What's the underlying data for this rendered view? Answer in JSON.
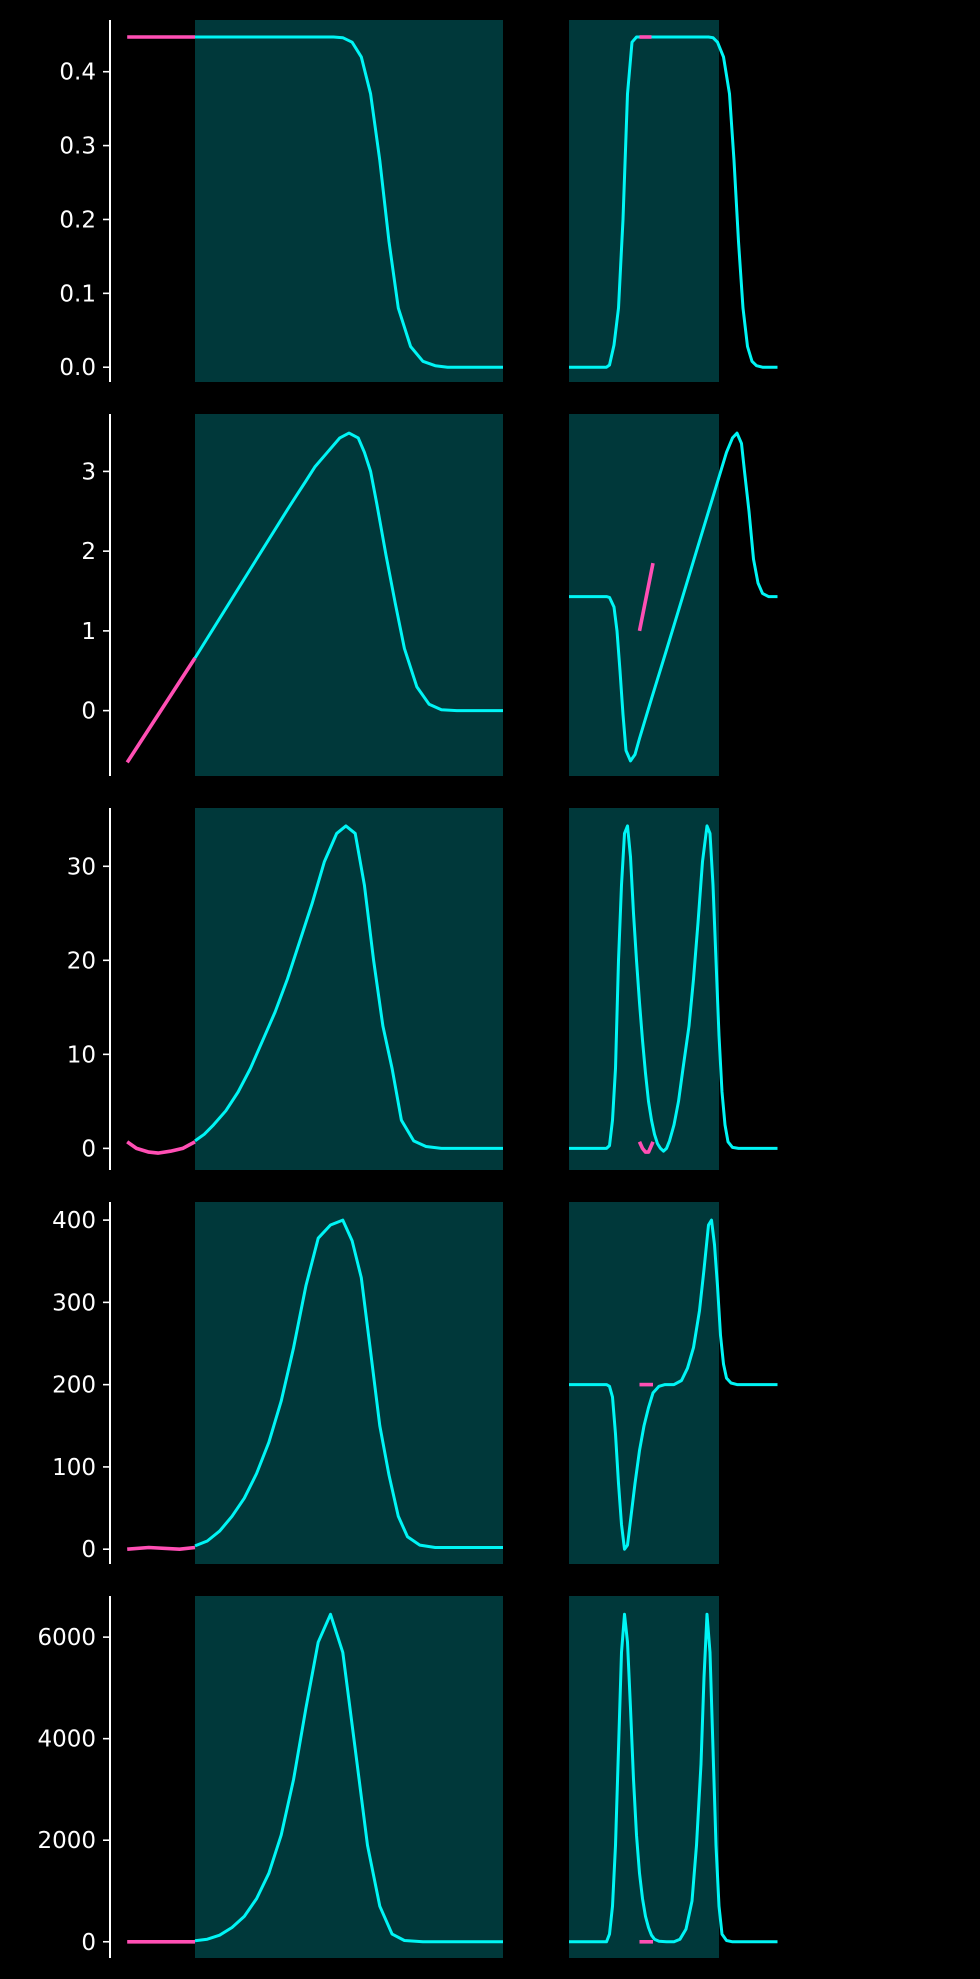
{
  "figure": {
    "background": "#000000"
  },
  "colors": {
    "line": "#00f5f5",
    "segment": "#ff4fb4",
    "shade": "#00383a",
    "axis": "#ffffff"
  },
  "chart_data": [
    {
      "type": "line",
      "ylim": [
        -0.02,
        0.47
      ],
      "yticks": [
        0.0,
        0.1,
        0.2,
        0.3,
        0.4
      ],
      "ytick_labels": [
        "0.0",
        "0.1",
        "0.2",
        "0.3",
        "0.4"
      ],
      "left_series": [
        [
          0.0,
          0.447
        ],
        [
          0.22,
          0.447
        ],
        [
          0.26,
          0.447
        ],
        [
          0.3,
          0.447
        ],
        [
          0.35,
          0.447
        ],
        [
          0.4,
          0.447
        ],
        [
          0.45,
          0.447
        ],
        [
          0.48,
          0.446
        ],
        [
          0.51,
          0.44
        ],
        [
          0.54,
          0.42
        ],
        [
          0.57,
          0.37
        ],
        [
          0.6,
          0.28
        ],
        [
          0.63,
          0.17
        ],
        [
          0.66,
          0.08
        ],
        [
          0.7,
          0.028
        ],
        [
          0.74,
          0.008
        ],
        [
          0.78,
          0.002
        ],
        [
          0.82,
          0.0
        ],
        [
          0.9,
          0.0
        ],
        [
          1.0,
          0.0
        ]
      ],
      "left_segment": [
        [
          -0.22,
          0.447
        ],
        [
          0.0,
          0.447
        ]
      ],
      "right_series": [
        [
          0.0,
          0.0
        ],
        [
          0.25,
          0.0
        ],
        [
          0.27,
          0.003
        ],
        [
          0.3,
          0.03
        ],
        [
          0.33,
          0.08
        ],
        [
          0.36,
          0.2
        ],
        [
          0.39,
          0.37
        ],
        [
          0.42,
          0.44
        ],
        [
          0.45,
          0.447
        ],
        [
          0.55,
          0.447
        ],
        [
          0.7,
          0.447
        ],
        [
          0.93,
          0.447
        ],
        [
          0.96,
          0.446
        ],
        [
          0.99,
          0.44
        ],
        [
          1.03,
          0.42
        ],
        [
          1.07,
          0.37
        ],
        [
          1.1,
          0.28
        ],
        [
          1.13,
          0.17
        ],
        [
          1.16,
          0.08
        ],
        [
          1.19,
          0.028
        ],
        [
          1.22,
          0.008
        ],
        [
          1.25,
          0.002
        ],
        [
          1.29,
          0.0
        ],
        [
          1.39,
          0.0
        ]
      ],
      "right_segment": [
        [
          0.47,
          0.447
        ],
        [
          0.55,
          0.447
        ]
      ]
    },
    {
      "type": "line",
      "ylim": [
        -0.82,
        3.72
      ],
      "yticks": [
        0,
        1,
        2,
        3
      ],
      "ytick_labels": [
        "0",
        "1",
        "2",
        "3"
      ],
      "left_series": [
        [
          0.0,
          0.66
        ],
        [
          0.1,
          1.28
        ],
        [
          0.2,
          1.9
        ],
        [
          0.3,
          2.52
        ],
        [
          0.33,
          2.7
        ],
        [
          0.36,
          2.88
        ],
        [
          0.39,
          3.06
        ],
        [
          0.43,
          3.24
        ],
        [
          0.47,
          3.42
        ],
        [
          0.5,
          3.48
        ],
        [
          0.53,
          3.42
        ],
        [
          0.55,
          3.24
        ],
        [
          0.57,
          3.0
        ],
        [
          0.59,
          2.6
        ],
        [
          0.62,
          1.95
        ],
        [
          0.65,
          1.35
        ],
        [
          0.68,
          0.78
        ],
        [
          0.72,
          0.3
        ],
        [
          0.76,
          0.08
        ],
        [
          0.8,
          0.01
        ],
        [
          0.85,
          0.0
        ],
        [
          1.0,
          0.0
        ]
      ],
      "left_segment": [
        [
          -0.22,
          -0.65
        ],
        [
          0.0,
          0.66
        ]
      ],
      "right_series": [
        [
          0.0,
          1.43
        ],
        [
          0.25,
          1.43
        ],
        [
          0.27,
          1.42
        ],
        [
          0.3,
          1.3
        ],
        [
          0.32,
          1.0
        ],
        [
          0.34,
          0.5
        ],
        [
          0.36,
          -0.05
        ],
        [
          0.38,
          -0.5
        ],
        [
          0.41,
          -0.63
        ],
        [
          0.44,
          -0.55
        ],
        [
          0.47,
          -0.35
        ],
        [
          0.55,
          0.15
        ],
        [
          0.65,
          0.76
        ],
        [
          0.75,
          1.38
        ],
        [
          0.85,
          2.0
        ],
        [
          0.95,
          2.62
        ],
        [
          1.0,
          2.93
        ],
        [
          1.05,
          3.24
        ],
        [
          1.09,
          3.42
        ],
        [
          1.12,
          3.48
        ],
        [
          1.15,
          3.35
        ],
        [
          1.17,
          3.0
        ],
        [
          1.2,
          2.5
        ],
        [
          1.23,
          1.9
        ],
        [
          1.26,
          1.6
        ],
        [
          1.29,
          1.47
        ],
        [
          1.33,
          1.43
        ],
        [
          1.39,
          1.43
        ]
      ],
      "right_segment": [
        [
          0.47,
          1.0
        ],
        [
          0.56,
          1.85
        ]
      ]
    },
    {
      "type": "line",
      "ylim": [
        -2.3,
        36.2
      ],
      "yticks": [
        0,
        10,
        20,
        30
      ],
      "ytick_labels": [
        "0",
        "10",
        "20",
        "30"
      ],
      "left_series": [
        [
          0.0,
          0.8
        ],
        [
          0.03,
          1.5
        ],
        [
          0.06,
          2.5
        ],
        [
          0.1,
          4.0
        ],
        [
          0.14,
          6.0
        ],
        [
          0.18,
          8.5
        ],
        [
          0.22,
          11.5
        ],
        [
          0.26,
          14.5
        ],
        [
          0.3,
          18.0
        ],
        [
          0.34,
          22.0
        ],
        [
          0.38,
          26.0
        ],
        [
          0.42,
          30.5
        ],
        [
          0.46,
          33.5
        ],
        [
          0.49,
          34.3
        ],
        [
          0.52,
          33.5
        ],
        [
          0.55,
          28.0
        ],
        [
          0.58,
          20.0
        ],
        [
          0.61,
          13.0
        ],
        [
          0.64,
          8.5
        ],
        [
          0.67,
          3.0
        ],
        [
          0.71,
          0.8
        ],
        [
          0.75,
          0.2
        ],
        [
          0.8,
          0.0
        ],
        [
          0.9,
          0.0
        ],
        [
          1.0,
          0.0
        ]
      ],
      "left_segment": [
        [
          -0.22,
          0.7
        ],
        [
          -0.19,
          0.0
        ],
        [
          -0.15,
          -0.4
        ],
        [
          -0.12,
          -0.5
        ],
        [
          -0.08,
          -0.3
        ],
        [
          -0.04,
          0.0
        ],
        [
          0.0,
          0.7
        ]
      ],
      "right_series": [
        [
          0.0,
          0.0
        ],
        [
          0.25,
          0.0
        ],
        [
          0.27,
          0.3
        ],
        [
          0.29,
          3.0
        ],
        [
          0.31,
          8.5
        ],
        [
          0.33,
          20.0
        ],
        [
          0.35,
          28.0
        ],
        [
          0.37,
          33.5
        ],
        [
          0.39,
          34.3
        ],
        [
          0.41,
          31.0
        ],
        [
          0.43,
          25.0
        ],
        [
          0.45,
          20.0
        ],
        [
          0.47,
          15.5
        ],
        [
          0.49,
          11.5
        ],
        [
          0.51,
          8.0
        ],
        [
          0.53,
          5.0
        ],
        [
          0.55,
          3.0
        ],
        [
          0.57,
          1.5
        ],
        [
          0.59,
          0.5
        ],
        [
          0.61,
          0.0
        ],
        [
          0.63,
          -0.3
        ],
        [
          0.65,
          0.0
        ],
        [
          0.67,
          0.8
        ],
        [
          0.7,
          2.5
        ],
        [
          0.73,
          5.0
        ],
        [
          0.76,
          8.5
        ],
        [
          0.8,
          13.0
        ],
        [
          0.83,
          18.0
        ],
        [
          0.86,
          24.0
        ],
        [
          0.89,
          30.5
        ],
        [
          0.92,
          34.3
        ],
        [
          0.94,
          33.5
        ],
        [
          0.96,
          28.0
        ],
        [
          0.98,
          20.0
        ],
        [
          1.0,
          12.0
        ],
        [
          1.02,
          6.0
        ],
        [
          1.04,
          2.5
        ],
        [
          1.06,
          0.7
        ],
        [
          1.09,
          0.1
        ],
        [
          1.13,
          0.0
        ],
        [
          1.39,
          0.0
        ]
      ],
      "right_segment": [
        [
          0.47,
          0.7
        ],
        [
          0.49,
          0.0
        ],
        [
          0.51,
          -0.4
        ],
        [
          0.53,
          -0.4
        ],
        [
          0.56,
          0.7
        ]
      ]
    },
    {
      "type": "line",
      "ylim": [
        -18,
        422
      ],
      "yticks": [
        0,
        100,
        200,
        300,
        400
      ],
      "ytick_labels": [
        "0",
        "100",
        "200",
        "300",
        "400"
      ],
      "left_series": [
        [
          0.0,
          4
        ],
        [
          0.04,
          10
        ],
        [
          0.08,
          22
        ],
        [
          0.12,
          40
        ],
        [
          0.16,
          62
        ],
        [
          0.2,
          92
        ],
        [
          0.24,
          130
        ],
        [
          0.28,
          180
        ],
        [
          0.32,
          245
        ],
        [
          0.36,
          320
        ],
        [
          0.4,
          378
        ],
        [
          0.44,
          394
        ],
        [
          0.48,
          400
        ],
        [
          0.51,
          375
        ],
        [
          0.54,
          330
        ],
        [
          0.57,
          240
        ],
        [
          0.6,
          150
        ],
        [
          0.63,
          90
        ],
        [
          0.66,
          40
        ],
        [
          0.69,
          15
        ],
        [
          0.73,
          5
        ],
        [
          0.78,
          2
        ],
        [
          0.85,
          2
        ],
        [
          1.0,
          2
        ]
      ],
      "left_segment": [
        [
          -0.22,
          0
        ],
        [
          -0.15,
          2
        ],
        [
          -0.05,
          0
        ],
        [
          0.0,
          2
        ]
      ],
      "right_series": [
        [
          0.0,
          200
        ],
        [
          0.25,
          200
        ],
        [
          0.27,
          198
        ],
        [
          0.29,
          185
        ],
        [
          0.31,
          140
        ],
        [
          0.33,
          80
        ],
        [
          0.35,
          30
        ],
        [
          0.37,
          0
        ],
        [
          0.39,
          5
        ],
        [
          0.41,
          35
        ],
        [
          0.44,
          80
        ],
        [
          0.47,
          120
        ],
        [
          0.5,
          150
        ],
        [
          0.53,
          172
        ],
        [
          0.56,
          190
        ],
        [
          0.6,
          198
        ],
        [
          0.64,
          200
        ],
        [
          0.7,
          200
        ],
        [
          0.75,
          205
        ],
        [
          0.79,
          220
        ],
        [
          0.83,
          245
        ],
        [
          0.87,
          290
        ],
        [
          0.9,
          340
        ],
        [
          0.93,
          394
        ],
        [
          0.95,
          400
        ],
        [
          0.97,
          370
        ],
        [
          0.99,
          320
        ],
        [
          1.01,
          260
        ],
        [
          1.03,
          225
        ],
        [
          1.05,
          208
        ],
        [
          1.08,
          202
        ],
        [
          1.12,
          200
        ],
        [
          1.39,
          200
        ]
      ],
      "right_segment": [
        [
          0.47,
          200
        ],
        [
          0.56,
          200
        ]
      ]
    },
    {
      "type": "line",
      "ylim": [
        -320,
        6810
      ],
      "yticks": [
        0,
        2000,
        4000,
        6000
      ],
      "ytick_labels": [
        "0",
        "2000",
        "4000",
        "6000"
      ],
      "left_series": [
        [
          0.0,
          20
        ],
        [
          0.04,
          50
        ],
        [
          0.08,
          130
        ],
        [
          0.12,
          280
        ],
        [
          0.16,
          500
        ],
        [
          0.2,
          850
        ],
        [
          0.24,
          1350
        ],
        [
          0.28,
          2100
        ],
        [
          0.32,
          3200
        ],
        [
          0.36,
          4600
        ],
        [
          0.4,
          5900
        ],
        [
          0.44,
          6450
        ],
        [
          0.48,
          5700
        ],
        [
          0.52,
          3800
        ],
        [
          0.56,
          1900
        ],
        [
          0.6,
          700
        ],
        [
          0.64,
          150
        ],
        [
          0.68,
          25
        ],
        [
          0.74,
          0
        ],
        [
          0.85,
          0
        ],
        [
          1.0,
          0
        ]
      ],
      "left_segment": [
        [
          -0.22,
          0
        ],
        [
          0.0,
          0
        ]
      ],
      "right_series": [
        [
          0.0,
          0
        ],
        [
          0.25,
          0
        ],
        [
          0.27,
          150
        ],
        [
          0.29,
          700
        ],
        [
          0.31,
          1900
        ],
        [
          0.33,
          3800
        ],
        [
          0.35,
          5700
        ],
        [
          0.37,
          6450
        ],
        [
          0.39,
          5900
        ],
        [
          0.41,
          4600
        ],
        [
          0.43,
          3200
        ],
        [
          0.45,
          2100
        ],
        [
          0.47,
          1350
        ],
        [
          0.49,
          850
        ],
        [
          0.51,
          500
        ],
        [
          0.53,
          280
        ],
        [
          0.55,
          130
        ],
        [
          0.57,
          50
        ],
        [
          0.6,
          10
        ],
        [
          0.65,
          0
        ],
        [
          0.7,
          0
        ],
        [
          0.74,
          50
        ],
        [
          0.78,
          250
        ],
        [
          0.82,
          800
        ],
        [
          0.85,
          1900
        ],
        [
          0.88,
          3500
        ],
        [
          0.9,
          5200
        ],
        [
          0.92,
          6450
        ],
        [
          0.94,
          5700
        ],
        [
          0.96,
          3800
        ],
        [
          0.98,
          1900
        ],
        [
          1.0,
          700
        ],
        [
          1.02,
          150
        ],
        [
          1.05,
          25
        ],
        [
          1.09,
          0
        ],
        [
          1.39,
          0
        ]
      ],
      "right_segment": [
        [
          0.47,
          0
        ],
        [
          0.56,
          0
        ]
      ]
    }
  ]
}
